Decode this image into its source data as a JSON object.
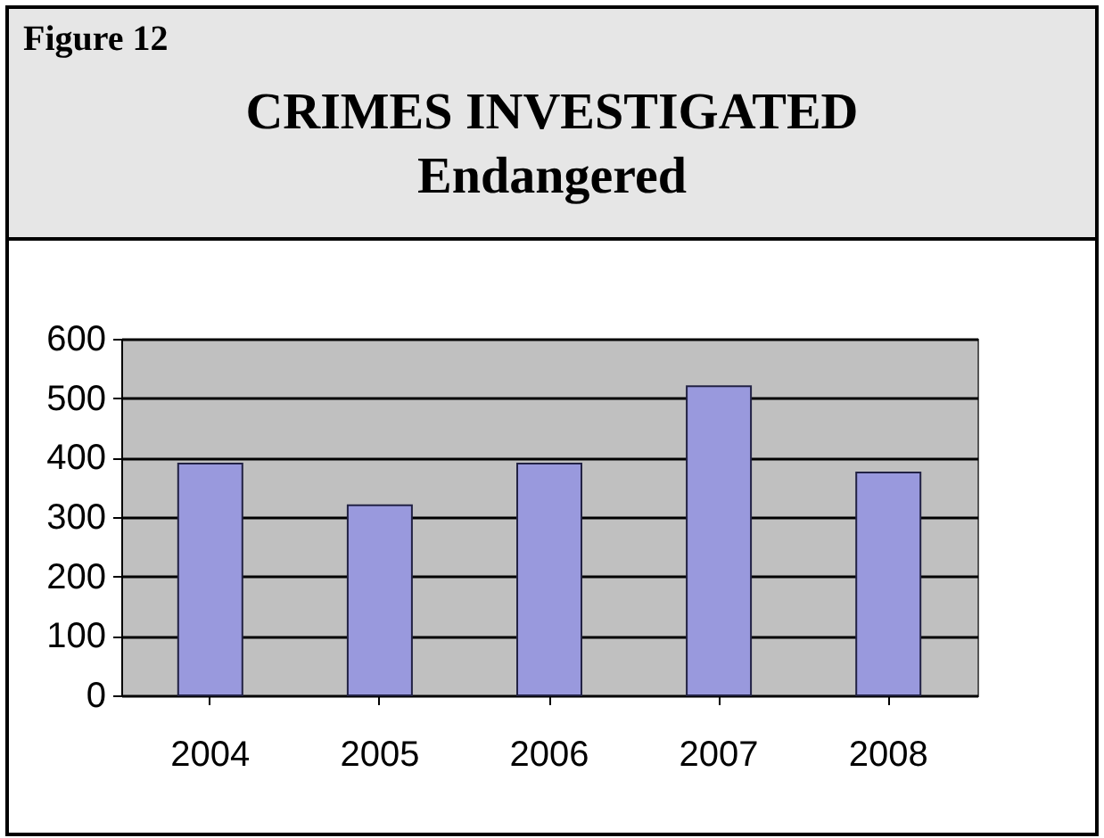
{
  "chart_data": {
    "type": "bar",
    "title": "CRIMES INVESTIGATED",
    "subtitle": "Endangered",
    "annotations": [
      "Figure 12"
    ],
    "categories": [
      "2004",
      "2005",
      "2006",
      "2007",
      "2008"
    ],
    "values": [
      390,
      320,
      390,
      520,
      375
    ],
    "color": "#9999dd",
    "ylim": [
      0,
      600
    ],
    "yticks": [
      0,
      100,
      200,
      300,
      400,
      500,
      600
    ],
    "grid": "y"
  }
}
